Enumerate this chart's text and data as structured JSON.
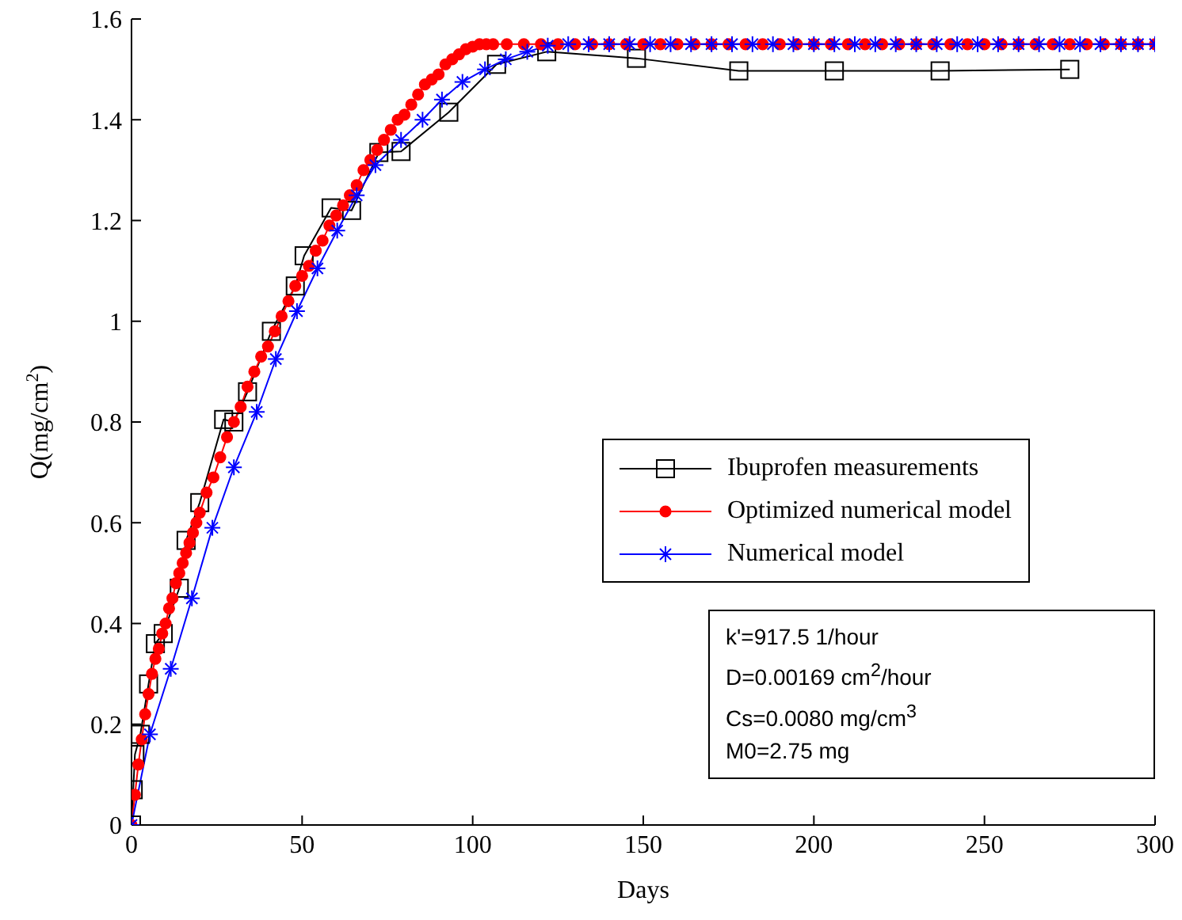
{
  "chart_data": {
    "type": "line",
    "xlabel": "Days",
    "ylabel": "Q(mg/cm$^{2}$)",
    "xlim": [
      0,
      300
    ],
    "xticks": [
      0,
      50,
      100,
      150,
      200,
      250,
      300
    ],
    "ylim": [
      0,
      1.6
    ],
    "yticks": [
      0,
      0.2,
      0.4,
      0.6,
      0.8,
      1,
      1.2,
      1.4,
      1.6
    ],
    "grid": false,
    "legend": "right",
    "line_style": "solid",
    "series": [
      {
        "name": "Ibuprofen measurements",
        "color": "#000000",
        "marker": "square",
        "x": [
          0,
          0.5,
          1,
          2.6,
          5,
          7,
          9.3,
          14,
          16,
          20,
          27,
          30,
          34,
          41,
          48,
          50.6,
          58.5,
          64.5,
          72.5,
          79,
          93,
          107,
          121.7,
          148,
          178,
          206,
          237,
          275
        ],
        "values": [
          0,
          0.07,
          0.14,
          0.18,
          0.28,
          0.36,
          0.38,
          0.47,
          0.565,
          0.64,
          0.805,
          0.8,
          0.86,
          0.98,
          1.07,
          1.13,
          1.225,
          1.22,
          1.335,
          1.337,
          1.415,
          1.51,
          1.535,
          1.522,
          1.497,
          1.497,
          1.497,
          1.5
        ]
      },
      {
        "name": "Optimized numerical model",
        "color": "#ff0000",
        "marker": "circle",
        "x": [
          0,
          1,
          2,
          3,
          4,
          5,
          6,
          7,
          8,
          9,
          10,
          11,
          12,
          13,
          14,
          15,
          16,
          17,
          18,
          19,
          20,
          22,
          24,
          26,
          28,
          30,
          32,
          34,
          36,
          38,
          40,
          42,
          44,
          46,
          48,
          50,
          52,
          54,
          56,
          58,
          60,
          62,
          64,
          66,
          68,
          70,
          72,
          74,
          76,
          78,
          80,
          82,
          84,
          86,
          88,
          90,
          92,
          94,
          96,
          98,
          100,
          102,
          104,
          106,
          110,
          115,
          120,
          125,
          130,
          135,
          140,
          145,
          150,
          155,
          160,
          165,
          170,
          175,
          180,
          185,
          190,
          195,
          200,
          205,
          210,
          215,
          220,
          225,
          230,
          235,
          240,
          245,
          250,
          255,
          260,
          265,
          270,
          275,
          280,
          285,
          290,
          295,
          300
        ],
        "values": [
          0,
          0.06,
          0.12,
          0.17,
          0.22,
          0.26,
          0.3,
          0.33,
          0.35,
          0.38,
          0.4,
          0.43,
          0.45,
          0.48,
          0.5,
          0.52,
          0.54,
          0.56,
          0.58,
          0.6,
          0.62,
          0.66,
          0.69,
          0.73,
          0.77,
          0.8,
          0.83,
          0.87,
          0.9,
          0.93,
          0.95,
          0.98,
          1.01,
          1.04,
          1.07,
          1.09,
          1.11,
          1.14,
          1.16,
          1.19,
          1.21,
          1.23,
          1.25,
          1.27,
          1.3,
          1.32,
          1.34,
          1.36,
          1.38,
          1.4,
          1.41,
          1.43,
          1.45,
          1.47,
          1.48,
          1.49,
          1.51,
          1.52,
          1.53,
          1.54,
          1.545,
          1.55,
          1.55,
          1.55,
          1.55,
          1.55,
          1.55,
          1.55,
          1.55,
          1.55,
          1.55,
          1.55,
          1.55,
          1.55,
          1.55,
          1.55,
          1.55,
          1.55,
          1.55,
          1.55,
          1.55,
          1.55,
          1.55,
          1.55,
          1.55,
          1.55,
          1.55,
          1.55,
          1.55,
          1.55,
          1.55,
          1.55,
          1.55,
          1.55,
          1.55,
          1.55,
          1.55,
          1.55,
          1.55,
          1.55,
          1.55,
          1.55,
          1.55
        ]
      },
      {
        "name": "Numerical model",
        "color": "#0000ff",
        "marker": "cross",
        "x": [
          0,
          5.4,
          11.5,
          17.7,
          23.7,
          30,
          36.7,
          42.3,
          48.5,
          54.5,
          60.3,
          66,
          71.5,
          79,
          85.3,
          91,
          97,
          103.6,
          109.7,
          116,
          122,
          128,
          134,
          140,
          146,
          152,
          158,
          164,
          170,
          176,
          182,
          188,
          194,
          200,
          206,
          212,
          218,
          224,
          230,
          236,
          242,
          248,
          254,
          260,
          266,
          272,
          278,
          284,
          290,
          295,
          300
        ],
        "values": [
          0,
          0.18,
          0.31,
          0.45,
          0.59,
          0.71,
          0.82,
          0.925,
          1.02,
          1.105,
          1.18,
          1.25,
          1.31,
          1.36,
          1.4,
          1.44,
          1.475,
          1.5,
          1.52,
          1.535,
          1.547,
          1.55,
          1.55,
          1.55,
          1.55,
          1.55,
          1.55,
          1.55,
          1.55,
          1.55,
          1.55,
          1.55,
          1.55,
          1.55,
          1.55,
          1.55,
          1.55,
          1.55,
          1.55,
          1.55,
          1.55,
          1.55,
          1.55,
          1.55,
          1.55,
          1.55,
          1.55,
          1.55,
          1.55,
          1.55,
          1.55
        ]
      }
    ],
    "annotations": [
      "k'=917.5 1/hour",
      "D=0.00169 cm$^{2}$/hour",
      "Cs=0.0080 mg/cm$^{3}$",
      "M0=2.75 mg"
    ]
  }
}
